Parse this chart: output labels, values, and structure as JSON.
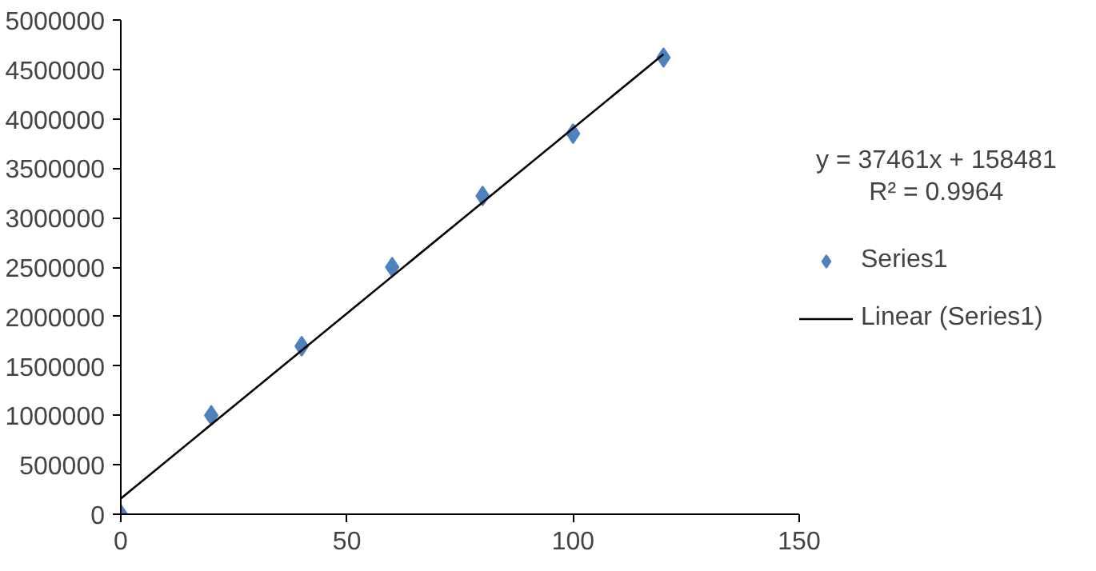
{
  "chart_data": {
    "type": "scatter",
    "x": [
      0,
      20,
      40,
      60,
      80,
      100,
      120
    ],
    "series": [
      {
        "name": "Series1",
        "color": "#4f81bd",
        "values": [
          0,
          1000000,
          1700000,
          2500000,
          3220000,
          3850000,
          4620000
        ],
        "marker": "diamond"
      },
      {
        "name": "Linear (Series1)",
        "type": "line",
        "color": "#000000",
        "x": [
          0,
          120
        ],
        "values": [
          158481,
          4653801
        ],
        "marker": "none"
      }
    ],
    "annotations": [
      "y = 37461x + 158481",
      "R² = 0.9964"
    ],
    "xlim": [
      0,
      150
    ],
    "xticks": [
      0,
      50,
      100,
      150
    ],
    "ylim": [
      0,
      5000000
    ],
    "yticks": [
      0,
      500000,
      1000000,
      1500000,
      2000000,
      2500000,
      3000000,
      3500000,
      4000000,
      4500000,
      5000000
    ],
    "grid": false,
    "legend": "right"
  }
}
